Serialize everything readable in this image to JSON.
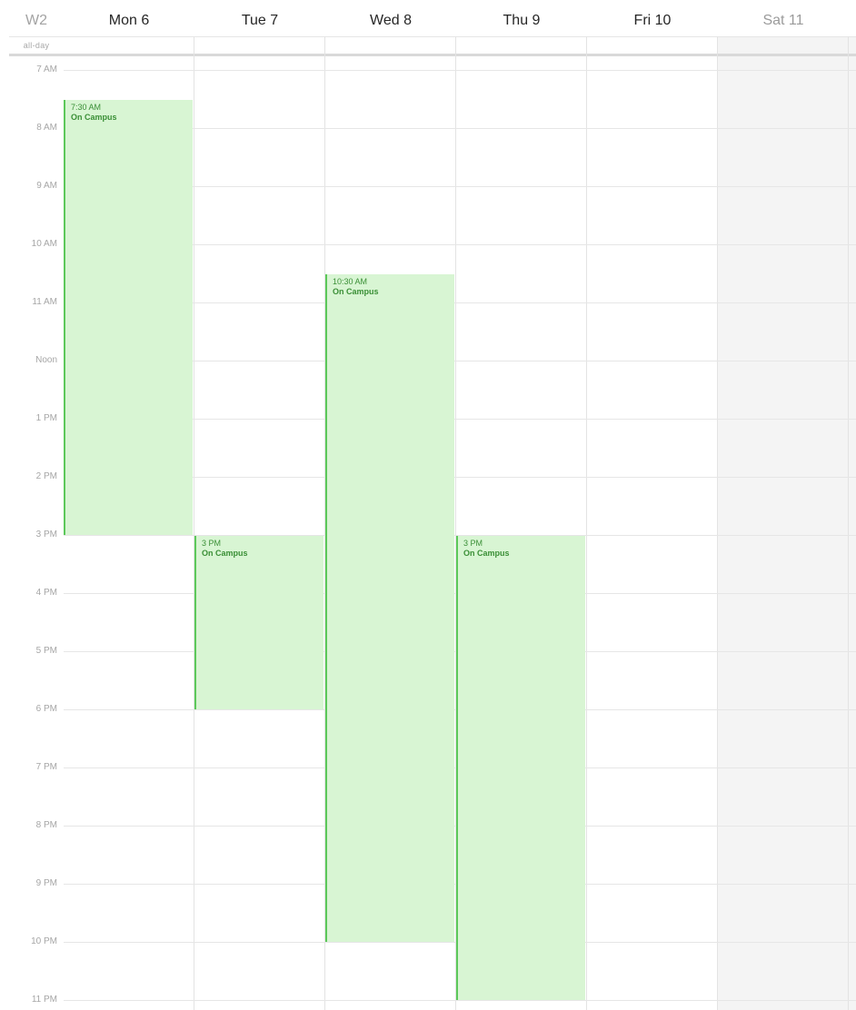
{
  "header": {
    "week_label": "W2",
    "days": [
      {
        "label": "Mon 6",
        "weekend": false
      },
      {
        "label": "Tue 7",
        "weekend": false
      },
      {
        "label": "Wed 8",
        "weekend": false
      },
      {
        "label": "Thu 9",
        "weekend": false
      },
      {
        "label": "Fri 10",
        "weekend": false
      },
      {
        "label": "Sat 11",
        "weekend": true
      }
    ],
    "all_day_label": "all-day"
  },
  "hours": [
    "7 AM",
    "8 AM",
    "9 AM",
    "10 AM",
    "11 AM",
    "Noon",
    "1 PM",
    "2 PM",
    "3 PM",
    "4 PM",
    "5 PM",
    "6 PM",
    "7 PM",
    "8 PM",
    "9 PM",
    "10 PM",
    "11 PM"
  ],
  "events": [
    {
      "day": 0,
      "start": 7.5,
      "end": 15,
      "time": "7:30 AM",
      "title": "On Campus"
    },
    {
      "day": 1,
      "start": 15,
      "end": 18,
      "time": "3 PM",
      "title": "On Campus"
    },
    {
      "day": 2,
      "start": 10.5,
      "end": 22,
      "time": "10:30 AM",
      "title": "On Campus"
    },
    {
      "day": 3,
      "start": 15,
      "end": 23,
      "time": "3 PM",
      "title": "On Campus"
    }
  ],
  "colors": {
    "event_fill": "#d8f5d3",
    "event_accent": "#5cc85a",
    "event_text": "#3a8f36",
    "weekend_fill": "#f4f4f4"
  }
}
